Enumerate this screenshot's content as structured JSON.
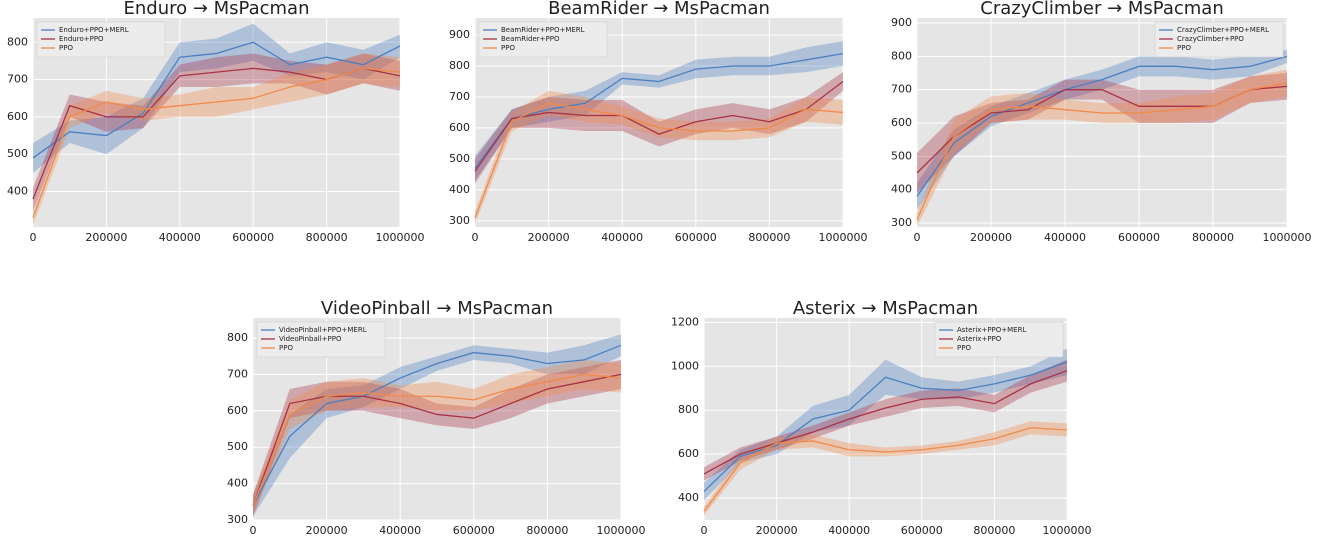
{
  "chart_data": [
    {
      "type": "line",
      "title": "Enduro → MsPacman",
      "legend": "upper left",
      "grid": true,
      "x": [
        0,
        100000,
        200000,
        300000,
        400000,
        500000,
        600000,
        700000,
        800000,
        900000,
        1000000
      ],
      "xlim": [
        0,
        1000000
      ],
      "xticks": [
        0,
        200000,
        400000,
        600000,
        800000,
        1000000
      ],
      "ylim": [
        305,
        865
      ],
      "yticks": [
        400,
        500,
        600,
        700,
        800
      ],
      "series": [
        {
          "name": "Enduro+PPO+MERL",
          "color": "#4a7fc1",
          "values": [
            490,
            560,
            550,
            610,
            760,
            770,
            800,
            740,
            760,
            740,
            790
          ],
          "errors": [
            40,
            30,
            50,
            40,
            40,
            40,
            50,
            30,
            40,
            40,
            30
          ]
        },
        {
          "name": "Enduro+PPO",
          "color": "#a83244",
          "values": [
            380,
            630,
            600,
            600,
            710,
            720,
            730,
            720,
            700,
            730,
            710
          ],
          "errors": [
            30,
            30,
            40,
            30,
            30,
            40,
            40,
            30,
            40,
            40,
            40
          ]
        },
        {
          "name": "PPO",
          "color": "#f08a4b",
          "values": [
            330,
            600,
            640,
            620,
            630,
            640,
            650,
            680,
            700,
            730,
            720
          ],
          "errors": [
            20,
            30,
            30,
            30,
            30,
            40,
            30,
            40,
            40,
            40,
            40
          ]
        }
      ]
    },
    {
      "type": "line",
      "title": "BeamRider → MsPacman",
      "legend": "upper left",
      "grid": true,
      "x": [
        0,
        100000,
        200000,
        300000,
        400000,
        500000,
        600000,
        700000,
        800000,
        900000,
        1000000
      ],
      "xlim": [
        0,
        1000000
      ],
      "xticks": [
        0,
        200000,
        400000,
        600000,
        800000,
        1000000
      ],
      "ylim": [
        280,
        955
      ],
      "yticks": [
        300,
        400,
        500,
        600,
        700,
        800,
        900
      ],
      "series": [
        {
          "name": "BeamRider+PPO+MERL",
          "color": "#4a7fc1",
          "values": [
            470,
            630,
            660,
            680,
            760,
            750,
            790,
            800,
            800,
            820,
            840
          ],
          "errors": [
            40,
            30,
            40,
            40,
            20,
            20,
            30,
            30,
            30,
            40,
            40
          ]
        },
        {
          "name": "BeamRider+PPO",
          "color": "#a83244",
          "values": [
            460,
            630,
            650,
            640,
            640,
            580,
            620,
            640,
            620,
            660,
            750
          ],
          "errors": [
            40,
            30,
            50,
            50,
            50,
            40,
            40,
            40,
            40,
            40,
            30
          ]
        },
        {
          "name": "PPO",
          "color": "#f08a4b",
          "values": [
            310,
            620,
            680,
            660,
            640,
            600,
            590,
            590,
            600,
            660,
            650
          ],
          "errors": [
            20,
            30,
            40,
            40,
            30,
            30,
            30,
            30,
            30,
            40,
            40
          ]
        }
      ]
    },
    {
      "type": "line",
      "title": "CrazyClimber → MsPacman",
      "legend": "upper right",
      "grid": true,
      "x": [
        0,
        100000,
        200000,
        300000,
        400000,
        500000,
        600000,
        700000,
        800000,
        900000,
        1000000
      ],
      "xlim": [
        0,
        1000000
      ],
      "xticks": [
        0,
        200000,
        400000,
        600000,
        800000,
        1000000
      ],
      "ylim": [
        288,
        915
      ],
      "yticks": [
        300,
        400,
        500,
        600,
        700,
        800,
        900
      ],
      "series": [
        {
          "name": "CrazyClimber+PPO+MERL",
          "color": "#4a7fc1",
          "values": [
            380,
            540,
            620,
            660,
            700,
            730,
            770,
            770,
            760,
            770,
            800
          ],
          "errors": [
            40,
            40,
            30,
            30,
            30,
            30,
            30,
            30,
            30,
            30,
            20
          ]
        },
        {
          "name": "CrazyClimber+PPO",
          "color": "#a83244",
          "values": [
            450,
            560,
            630,
            640,
            700,
            700,
            650,
            650,
            650,
            700,
            710
          ],
          "errors": [
            60,
            60,
            30,
            30,
            30,
            30,
            50,
            50,
            50,
            40,
            40
          ]
        },
        {
          "name": "PPO",
          "color": "#f08a4b",
          "values": [
            310,
            560,
            640,
            650,
            640,
            630,
            630,
            640,
            650,
            700,
            720
          ],
          "errors": [
            20,
            50,
            40,
            40,
            30,
            30,
            30,
            40,
            40,
            40,
            40
          ]
        }
      ]
    },
    {
      "type": "line",
      "title": "VideoPinball → MsPacman",
      "legend": "upper left",
      "grid": true,
      "x": [
        0,
        100000,
        200000,
        300000,
        400000,
        500000,
        600000,
        700000,
        800000,
        900000,
        1000000
      ],
      "xlim": [
        0,
        1000000
      ],
      "xticks": [
        0,
        200000,
        400000,
        600000,
        800000,
        1000000
      ],
      "ylim": [
        300,
        855
      ],
      "yticks": [
        300,
        400,
        500,
        600,
        700,
        800
      ],
      "series": [
        {
          "name": "VideoPinball+PPO+MERL",
          "color": "#4a7fc1",
          "values": [
            340,
            530,
            620,
            640,
            690,
            730,
            760,
            750,
            730,
            740,
            780
          ],
          "errors": [
            30,
            60,
            40,
            30,
            30,
            20,
            20,
            20,
            30,
            40,
            30
          ]
        },
        {
          "name": "VideoPinball+PPO",
          "color": "#a83244",
          "values": [
            340,
            620,
            640,
            640,
            620,
            590,
            580,
            620,
            660,
            680,
            700
          ],
          "errors": [
            30,
            40,
            40,
            40,
            40,
            30,
            30,
            40,
            40,
            40,
            40
          ]
        },
        {
          "name": "PPO",
          "color": "#f08a4b",
          "values": [
            340,
            590,
            640,
            650,
            640,
            640,
            630,
            660,
            680,
            700,
            690
          ],
          "errors": [
            30,
            40,
            40,
            40,
            30,
            40,
            30,
            40,
            40,
            40,
            40
          ]
        }
      ]
    },
    {
      "type": "line",
      "title": "Asterix → MsPacman",
      "legend": "upper right",
      "grid": true,
      "x": [
        0,
        100000,
        200000,
        300000,
        400000,
        500000,
        600000,
        700000,
        800000,
        900000,
        1000000
      ],
      "xlim": [
        0,
        1000000
      ],
      "xticks": [
        0,
        200000,
        400000,
        600000,
        800000,
        1000000
      ],
      "ylim": [
        300,
        1220
      ],
      "yticks": [
        400,
        600,
        800,
        1000,
        1200
      ],
      "series": [
        {
          "name": "Asterix+PPO+MERL",
          "color": "#4a7fc1",
          "values": [
            430,
            590,
            640,
            760,
            800,
            950,
            900,
            890,
            920,
            960,
            1020
          ],
          "errors": [
            40,
            30,
            40,
            60,
            70,
            80,
            50,
            40,
            40,
            40,
            60
          ]
        },
        {
          "name": "Asterix+PPO",
          "color": "#a83244",
          "values": [
            510,
            600,
            650,
            700,
            760,
            810,
            850,
            860,
            830,
            920,
            980
          ],
          "errors": [
            30,
            30,
            30,
            30,
            30,
            40,
            40,
            40,
            40,
            40,
            50
          ]
        },
        {
          "name": "PPO",
          "color": "#f08a4b",
          "values": [
            340,
            560,
            650,
            660,
            620,
            610,
            620,
            640,
            670,
            720,
            710
          ],
          "errors": [
            20,
            30,
            30,
            30,
            30,
            20,
            20,
            20,
            30,
            30,
            30
          ]
        }
      ]
    }
  ]
}
